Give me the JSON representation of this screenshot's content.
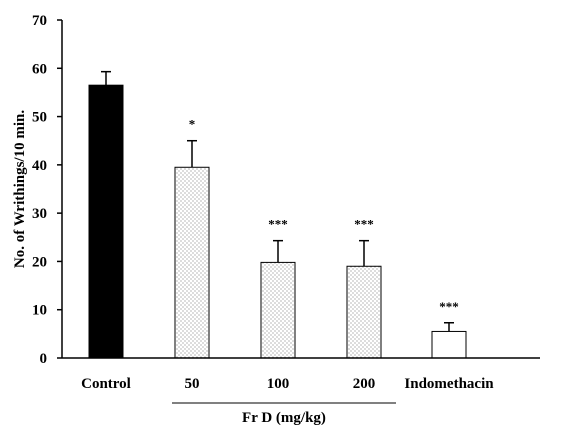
{
  "chart_data": {
    "type": "bar",
    "categories": [
      "Control",
      "50",
      "100",
      "200",
      "Indomethacin"
    ],
    "values": [
      56.5,
      39.5,
      19.8,
      19.0,
      5.5
    ],
    "errors": [
      2.8,
      5.5,
      4.5,
      5.3,
      1.8
    ],
    "significance": [
      "",
      "*",
      "***",
      "***",
      "***"
    ],
    "fills": [
      "solid",
      "dotted",
      "dotted",
      "dotted",
      "empty"
    ],
    "ylabel": "No. of Writhings/10 min.",
    "xgroup_label": "Fr D (mg/kg)",
    "ylim": [
      0,
      70
    ],
    "yticks": [
      "0",
      "10",
      "20",
      "30",
      "40",
      "50",
      "60",
      "70"
    ],
    "grid": false,
    "colors": {
      "solid": "#000000",
      "dot": "#000000",
      "outline": "#000000"
    }
  }
}
